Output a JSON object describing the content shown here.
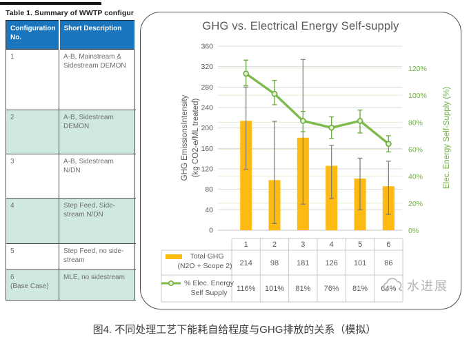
{
  "page": {
    "caption": "图4. 不同处理工艺下能耗自给程度与GHG排放的关系（模拟）",
    "watermark": "水进展"
  },
  "table1": {
    "title": "Table 1. Summary of WWTP configur",
    "columns": [
      "Configuration No.",
      "Short Description"
    ],
    "header_bg": "#1b75bc",
    "highlight_bg": "#cfe9df",
    "rows": [
      {
        "no": "1",
        "desc": "A-B, Mainstream & Sidestream DEMON"
      },
      {
        "no": "2",
        "desc": "A-B, Sidestream DEMON"
      },
      {
        "no": "3",
        "desc": "A-B, Sidestream N/DN"
      },
      {
        "no": "4",
        "desc": "Step Feed, Side-stream N/DN"
      },
      {
        "no": "5",
        "desc": "Step Feed, no side-stream"
      },
      {
        "no": "6\n(Base Case)",
        "desc": "MLE, no sidestream"
      }
    ]
  },
  "chart_data": {
    "type": "bar+line",
    "title": "GHG vs. Electrical Energy Self-supply",
    "categories": [
      "1",
      "2",
      "3",
      "4",
      "5",
      "6"
    ],
    "grid": true,
    "left_axis": {
      "label_line1": "GHG EmissionsIntensity",
      "label_line2": "(kg CO2-e/ML treated)",
      "min": 0,
      "max": 360,
      "step": 40,
      "color": "#595959"
    },
    "right_axis": {
      "label": "Elec. Energy Self-Supply (%)",
      "min": 0,
      "max": 120,
      "step": 20,
      "suffix": "%",
      "color": "#70ad47"
    },
    "series": [
      {
        "name": "Total GHG (N2O + Scope 2)",
        "legend_line1": "Total GHG",
        "legend_line2": "(N2O + Scope 2)",
        "type": "bar",
        "axis": "left",
        "color": "#fcba12",
        "values": [
          214,
          98,
          181,
          126,
          101,
          86
        ],
        "error_low": [
          119,
          13,
          51,
          62,
          40,
          31
        ],
        "error_high": [
          280,
          213,
          334,
          166,
          141,
          135
        ]
      },
      {
        "name": "% Elec. Energy Self Supply",
        "legend_line1": "% Elec. Energy",
        "legend_line2": "Self Supply",
        "type": "line",
        "axis": "right",
        "color": "#70ad47",
        "values": [
          116,
          101,
          81,
          76,
          81,
          64
        ],
        "display": [
          "116%",
          "101%",
          "81%",
          "76%",
          "81%",
          "64%"
        ],
        "error_low": [
          107,
          93,
          73,
          68,
          72,
          58
        ],
        "error_high": [
          126,
          111,
          88,
          84,
          89,
          70
        ]
      }
    ]
  }
}
